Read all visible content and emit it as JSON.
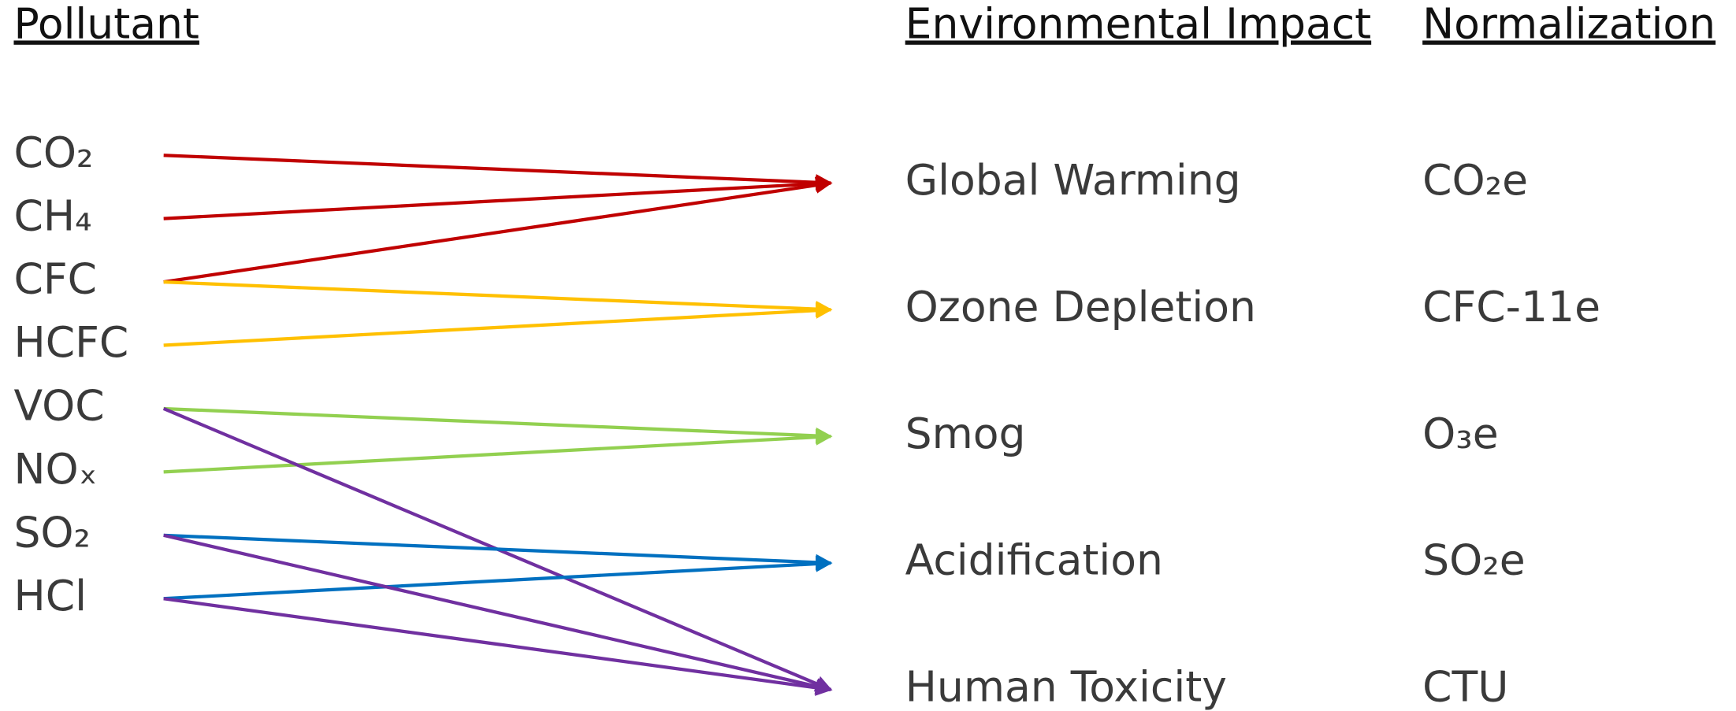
{
  "headers": {
    "pollutant": "Pollutant",
    "impact": "Environmental Impact",
    "normalization": "Normalization"
  },
  "pollutants": [
    "CO₂",
    "CH₄",
    "CFC",
    "HCFC",
    "VOC",
    "NOₓ",
    "SO₂",
    "HCl"
  ],
  "impacts": [
    {
      "name": "Global Warming",
      "normalization": "CO₂e"
    },
    {
      "name": "Ozone Depletion",
      "normalization": "CFC-11e"
    },
    {
      "name": "Smog",
      "normalization": "O₃e"
    },
    {
      "name": "Acidification",
      "normalization": "SO₂e"
    },
    {
      "name": "Human Toxicity",
      "normalization": "CTU"
    }
  ],
  "links": [
    {
      "from": 0,
      "to": 0,
      "color": "#c00000"
    },
    {
      "from": 1,
      "to": 0,
      "color": "#c00000"
    },
    {
      "from": 2,
      "to": 0,
      "color": "#c00000"
    },
    {
      "from": 2,
      "to": 1,
      "color": "#ffc000"
    },
    {
      "from": 3,
      "to": 1,
      "color": "#ffc000"
    },
    {
      "from": 4,
      "to": 2,
      "color": "#92d050"
    },
    {
      "from": 5,
      "to": 2,
      "color": "#92d050"
    },
    {
      "from": 4,
      "to": 4,
      "color": "#7030a0"
    },
    {
      "from": 6,
      "to": 3,
      "color": "#0070c0"
    },
    {
      "from": 7,
      "to": 3,
      "color": "#0070c0"
    },
    {
      "from": 6,
      "to": 4,
      "color": "#7030a0"
    },
    {
      "from": 7,
      "to": 4,
      "color": "#7030a0"
    }
  ]
}
